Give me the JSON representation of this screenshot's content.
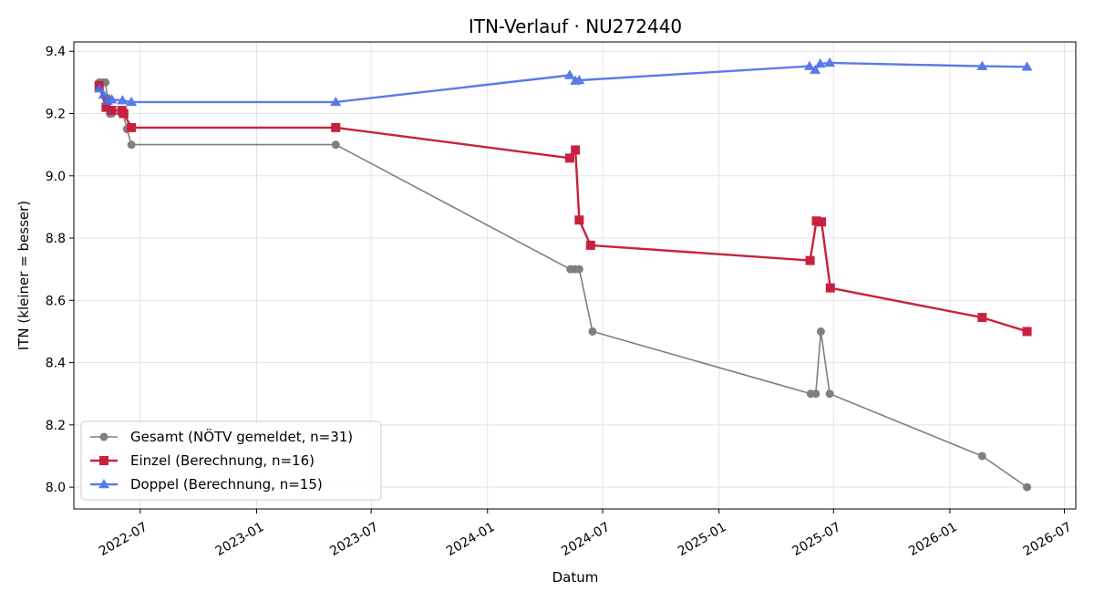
{
  "chart_data": {
    "type": "line",
    "title": "ITN-Verlauf · NU272440",
    "xlabel": "Datum",
    "ylabel": "ITN  (kleiner = besser)",
    "xlim": [
      "2022-03-18",
      "2026-07-19"
    ],
    "ylim": [
      7.93,
      9.43
    ],
    "x_ticks": [
      "2022-07",
      "2023-01",
      "2023-07",
      "2024-01",
      "2024-07",
      "2025-01",
      "2025-07",
      "2026-01",
      "2026-07"
    ],
    "y_ticks": [
      8.0,
      8.2,
      8.4,
      8.6,
      8.8,
      9.0,
      9.2,
      9.4
    ],
    "y_tick_labels": [
      "8.0",
      "8.2",
      "8.4",
      "8.6",
      "8.8",
      "9.0",
      "9.2",
      "9.4"
    ],
    "grid": true,
    "legend_position": "lower-left",
    "series": [
      {
        "name": "Gesamt (NÖTV gemeldet, n=31)",
        "color": "#555555",
        "marker": "circle",
        "points": [
          {
            "x": "2022-04-27",
            "y": 9.3
          },
          {
            "x": "2022-04-30",
            "y": 9.3
          },
          {
            "x": "2022-05-03",
            "y": 9.3
          },
          {
            "x": "2022-05-07",
            "y": 9.3
          },
          {
            "x": "2022-05-10",
            "y": 9.25
          },
          {
            "x": "2022-05-14",
            "y": 9.2
          },
          {
            "x": "2022-05-17",
            "y": 9.2
          },
          {
            "x": "2022-06-01",
            "y": 9.2
          },
          {
            "x": "2022-06-04",
            "y": 9.2
          },
          {
            "x": "2022-06-10",
            "y": 9.15
          },
          {
            "x": "2022-06-17",
            "y": 9.1
          },
          {
            "x": "2023-05-06",
            "y": 9.1
          },
          {
            "x": "2024-05-11",
            "y": 8.7
          },
          {
            "x": "2024-05-18",
            "y": 8.7
          },
          {
            "x": "2024-05-25",
            "y": 8.7
          },
          {
            "x": "2024-06-15",
            "y": 8.5
          },
          {
            "x": "2025-05-26",
            "y": 8.3
          },
          {
            "x": "2025-06-03",
            "y": 8.3
          },
          {
            "x": "2025-06-11",
            "y": 8.5
          },
          {
            "x": "2025-06-25",
            "y": 8.3
          },
          {
            "x": "2026-02-21",
            "y": 8.1
          },
          {
            "x": "2026-05-03",
            "y": 8.0
          }
        ]
      },
      {
        "name": "Einzel (Berechnung, n=16)",
        "color": "#c8213f",
        "marker": "square",
        "points": [
          {
            "x": "2022-04-27",
            "y": 9.29
          },
          {
            "x": "2022-05-08",
            "y": 9.22
          },
          {
            "x": "2022-05-17",
            "y": 9.21
          },
          {
            "x": "2022-06-02",
            "y": 9.21
          },
          {
            "x": "2022-06-05",
            "y": 9.2
          },
          {
            "x": "2022-06-17",
            "y": 9.155
          },
          {
            "x": "2023-05-06",
            "y": 9.155
          },
          {
            "x": "2024-05-10",
            "y": 9.057
          },
          {
            "x": "2024-05-19",
            "y": 9.083
          },
          {
            "x": "2024-05-25",
            "y": 8.858
          },
          {
            "x": "2024-06-12",
            "y": 8.777
          },
          {
            "x": "2025-05-25",
            "y": 8.728
          },
          {
            "x": "2025-06-04",
            "y": 8.855
          },
          {
            "x": "2025-06-12",
            "y": 8.852
          },
          {
            "x": "2025-06-26",
            "y": 8.64
          },
          {
            "x": "2026-02-21",
            "y": 8.545
          },
          {
            "x": "2026-05-03",
            "y": 8.5
          }
        ]
      },
      {
        "name": "Doppel (Berechnung, n=15)",
        "color": "#4a6ce8",
        "marker": "triangle",
        "points": [
          {
            "x": "2022-04-27",
            "y": 9.28
          },
          {
            "x": "2022-05-04",
            "y": 9.26
          },
          {
            "x": "2022-05-10",
            "y": 9.24
          },
          {
            "x": "2022-05-17",
            "y": 9.245
          },
          {
            "x": "2022-06-03",
            "y": 9.242
          },
          {
            "x": "2022-06-17",
            "y": 9.237
          },
          {
            "x": "2023-05-06",
            "y": 9.237
          },
          {
            "x": "2024-05-10",
            "y": 9.323
          },
          {
            "x": "2024-05-19",
            "y": 9.305
          },
          {
            "x": "2024-05-25",
            "y": 9.307
          },
          {
            "x": "2025-05-24",
            "y": 9.352
          },
          {
            "x": "2025-06-02",
            "y": 9.34
          },
          {
            "x": "2025-06-10",
            "y": 9.36
          },
          {
            "x": "2025-06-25",
            "y": 9.363
          },
          {
            "x": "2026-02-21",
            "y": 9.352
          },
          {
            "x": "2026-05-03",
            "y": 9.35
          }
        ]
      }
    ]
  }
}
